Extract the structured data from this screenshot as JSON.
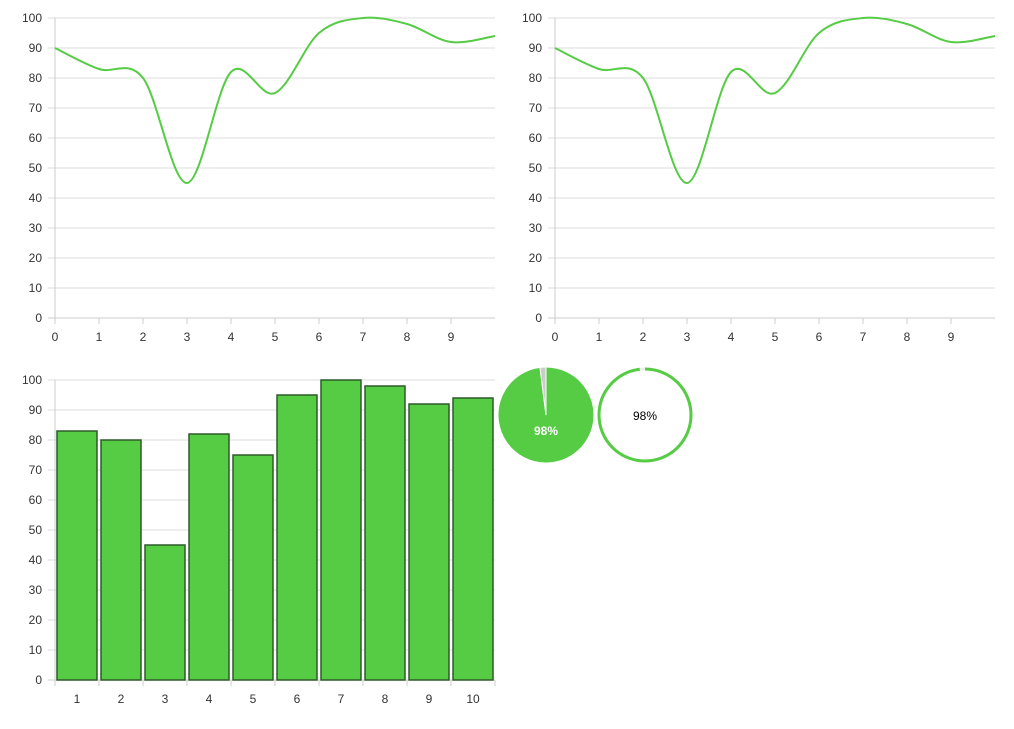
{
  "colors": {
    "series": "#55cc44",
    "bar_fill": "#55cc44",
    "bar_stroke": "#2f5a2a",
    "grid": "#dddddd",
    "pie_remainder": "#cccccc",
    "tick_text": "#333333"
  },
  "chart_data": [
    {
      "type": "line",
      "title": "",
      "xlabel": "",
      "ylabel": "",
      "x": [
        0,
        1,
        2,
        3,
        4,
        5,
        6,
        7,
        8,
        9,
        10
      ],
      "series": [
        {
          "values": [
            90,
            83,
            80,
            45,
            82,
            75,
            95,
            100,
            98,
            92,
            94
          ]
        }
      ],
      "xlim": [
        0,
        10
      ],
      "ylim": [
        0,
        100
      ],
      "xticks": [
        0,
        1,
        2,
        3,
        4,
        5,
        6,
        7,
        8,
        9
      ],
      "yticks": [
        0,
        10,
        20,
        30,
        40,
        50,
        60,
        70,
        80,
        90,
        100
      ],
      "grid": true,
      "legend": "none"
    },
    {
      "type": "line",
      "title": "",
      "xlabel": "",
      "ylabel": "",
      "x": [
        0,
        1,
        2,
        3,
        4,
        5,
        6,
        7,
        8,
        9,
        10
      ],
      "series": [
        {
          "values": [
            90,
            83,
            80,
            45,
            82,
            75,
            95,
            100,
            98,
            92,
            94
          ]
        }
      ],
      "xlim": [
        0,
        10
      ],
      "ylim": [
        0,
        100
      ],
      "xticks": [
        0,
        1,
        2,
        3,
        4,
        5,
        6,
        7,
        8,
        9
      ],
      "yticks": [
        0,
        10,
        20,
        30,
        40,
        50,
        60,
        70,
        80,
        90,
        100
      ],
      "grid": true,
      "legend": "none"
    },
    {
      "type": "bar",
      "title": "",
      "xlabel": "",
      "ylabel": "",
      "categories": [
        "1",
        "2",
        "3",
        "4",
        "5",
        "6",
        "7",
        "8",
        "9",
        "10"
      ],
      "values": [
        83,
        80,
        45,
        82,
        75,
        95,
        100,
        98,
        92,
        94
      ],
      "ylim": [
        0,
        100
      ],
      "yticks": [
        0,
        10,
        20,
        30,
        40,
        50,
        60,
        70,
        80,
        90,
        100
      ],
      "grid": true,
      "legend": "none"
    },
    {
      "type": "pie",
      "slices": [
        {
          "value": 98,
          "label": "98%"
        },
        {
          "value": 2,
          "label": ""
        }
      ]
    },
    {
      "type": "pie",
      "style": "ring",
      "slices": [
        {
          "value": 98,
          "label": "98%"
        },
        {
          "value": 2,
          "label": ""
        }
      ]
    }
  ]
}
